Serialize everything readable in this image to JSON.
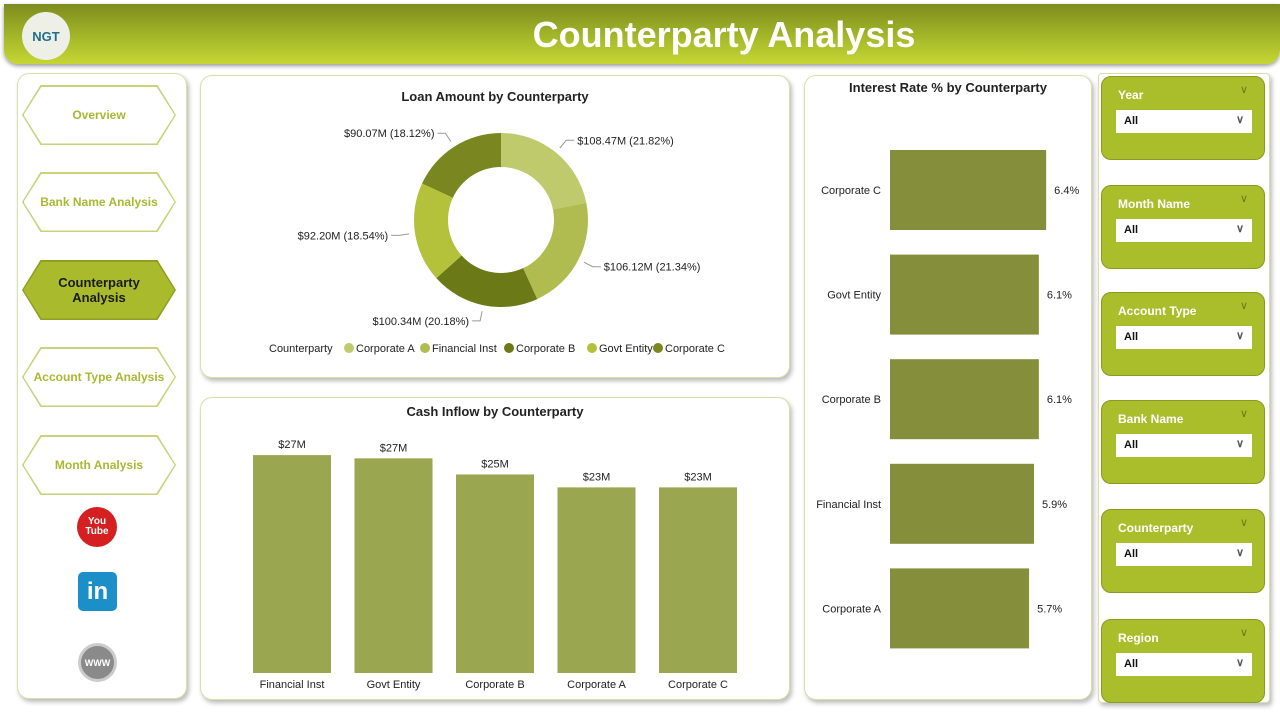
{
  "header": {
    "title": "Counterparty Analysis",
    "logo_text": "NGT"
  },
  "nav": [
    {
      "label": "Overview"
    },
    {
      "label": "Bank Name Analysis"
    },
    {
      "label": "Counterparty Analysis",
      "active": true
    },
    {
      "label": "Account Type Analysis"
    },
    {
      "label": "Month Analysis"
    }
  ],
  "social": [
    {
      "icon": "youtube-icon",
      "label": "You Tube"
    },
    {
      "icon": "linkedin-icon",
      "label": "in"
    },
    {
      "icon": "web-icon",
      "label": "WWW"
    }
  ],
  "slicers": [
    {
      "label": "Year",
      "value": "All"
    },
    {
      "label": "Month Name",
      "value": "All"
    },
    {
      "label": "Account Type",
      "value": "All"
    },
    {
      "label": "Bank Name",
      "value": "All"
    },
    {
      "label": "Counterparty",
      "value": "All"
    },
    {
      "label": "Region",
      "value": "All"
    }
  ],
  "colors": {
    "accent": "#aabd2a",
    "bar_cash": "#9aa650",
    "bar_rate": "#858e3a"
  },
  "chart_data": [
    {
      "type": "pie",
      "title": "Loan Amount by Counterparty",
      "legend_title": "Counterparty",
      "legend_position": "bottom",
      "slices": [
        {
          "name": "Corporate A",
          "value": 108.47,
          "label": "$108.47M (21.82%)",
          "color": "#bfca6d"
        },
        {
          "name": "Financial Inst",
          "value": 106.12,
          "label": "$106.12M (21.34%)",
          "color": "#b1bc50"
        },
        {
          "name": "Corporate B",
          "value": 100.34,
          "label": "$100.34M (20.18%)",
          "color": "#6b7a16"
        },
        {
          "name": "Govt Entity",
          "value": 92.2,
          "label": "$92.20M (18.54%)",
          "color": "#b3c23a"
        },
        {
          "name": "Corporate C",
          "value": 90.07,
          "label": "$90.07M (18.12%)",
          "color": "#7a861f"
        }
      ]
    },
    {
      "type": "bar",
      "title": "Cash Inflow by Counterparty",
      "categories": [
        "Financial Inst",
        "Govt Entity",
        "Corporate B",
        "Corporate A",
        "Corporate C"
      ],
      "values": [
        27.0,
        26.6,
        24.6,
        23.0,
        23.0
      ],
      "labels": [
        "$27M",
        "$27M",
        "$25M",
        "$23M",
        "$23M"
      ]
    },
    {
      "type": "bar",
      "orientation": "horizontal",
      "title": "Interest Rate % by Counterparty",
      "categories": [
        "Corporate C",
        "Govt Entity",
        "Corporate B",
        "Financial Inst",
        "Corporate A"
      ],
      "values": [
        6.4,
        6.1,
        6.1,
        5.9,
        5.7
      ],
      "labels": [
        "6.4%",
        "6.1%",
        "6.1%",
        "5.9%",
        "5.7%"
      ]
    }
  ]
}
